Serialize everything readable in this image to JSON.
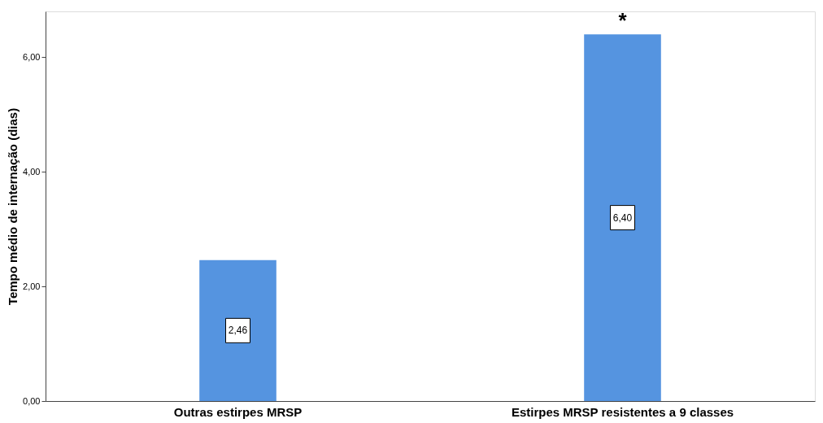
{
  "chart_data": {
    "type": "bar",
    "categories": [
      "Outras estirpes MRSP",
      "Estirpes MRSP resistentes a 9 classes"
    ],
    "values": [
      2.46,
      6.4
    ],
    "color": "#5594e0",
    "value_labels": [
      "2,46",
      "6,40"
    ],
    "ylabel": "Tempo médio de internação (dias)",
    "ylim": [
      0,
      6.8
    ],
    "yticks": [
      {
        "value": 0,
        "label": "0,00"
      },
      {
        "value": 2,
        "label": "2,00"
      },
      {
        "value": 4,
        "label": "4,00"
      },
      {
        "value": 6,
        "label": "6,00"
      }
    ],
    "grid": false,
    "annotations": [
      {
        "text": "*",
        "x": "Estirpes MRSP resistentes a 9 classes",
        "y": 6.4
      }
    ]
  }
}
